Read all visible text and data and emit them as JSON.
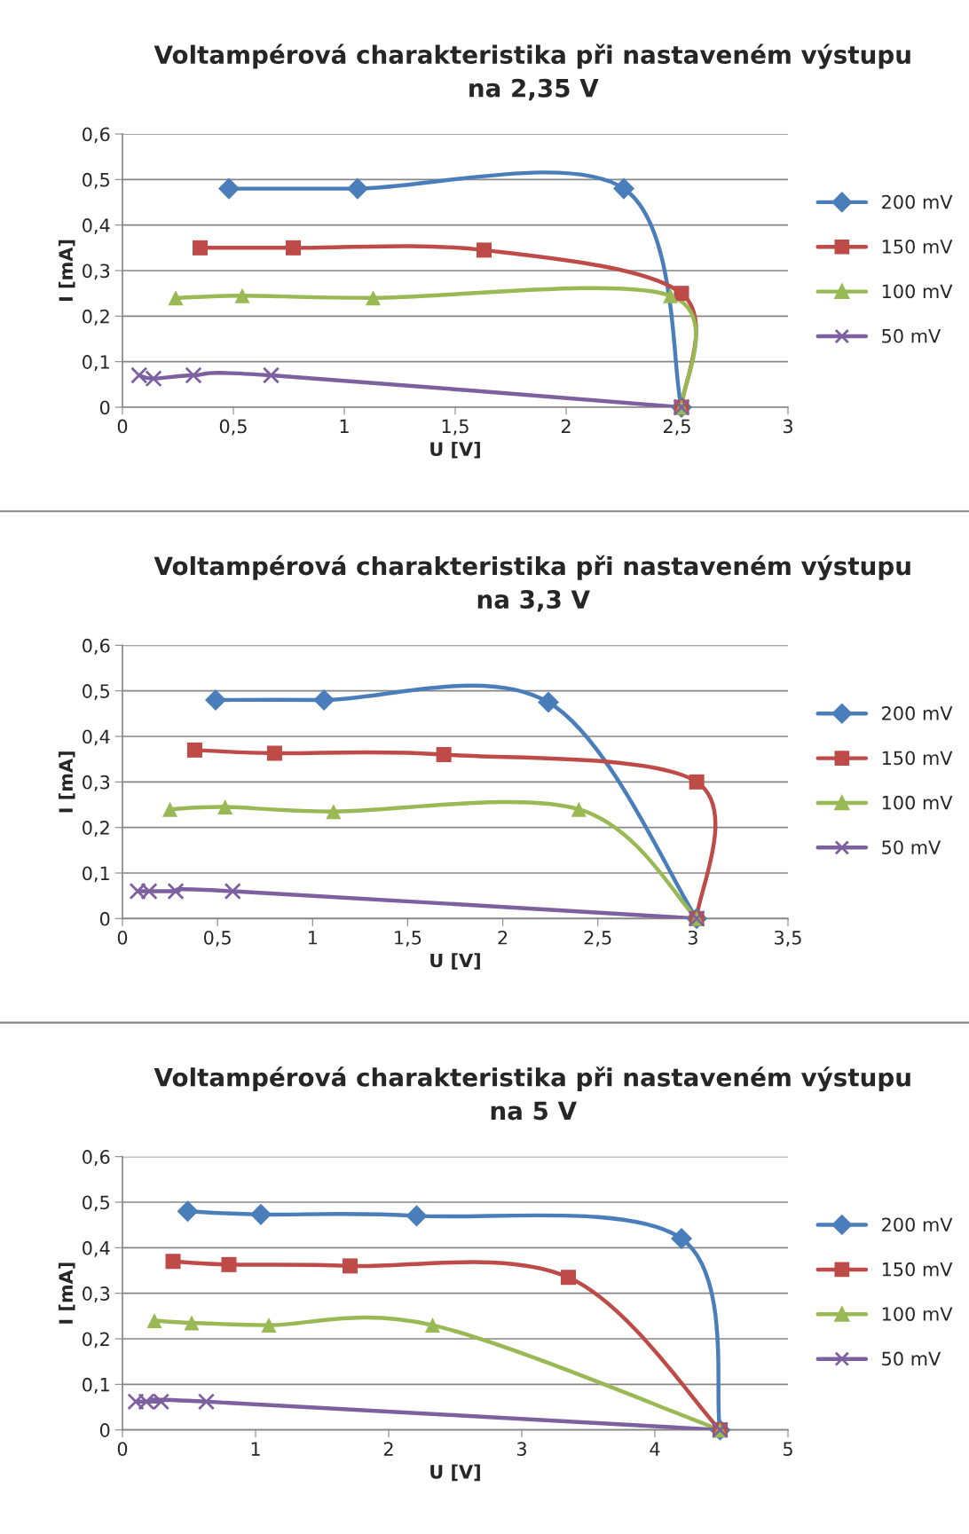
{
  "chart_data": [
    {
      "type": "line",
      "title": "Voltampérová charakteristika při nastaveném výstupu\nna 2,35 V",
      "xlabel": "U [V]",
      "ylabel": "I [mA]",
      "xlim": [
        0,
        3
      ],
      "xticks": [
        0,
        {
          "value": 0.5,
          "label": "0,5"
        },
        1,
        {
          "value": 1.5,
          "label": "1,5"
        },
        2,
        {
          "value": 2.5,
          "label": "2,5"
        },
        3
      ],
      "ylim": [
        0,
        0.6
      ],
      "yticks": [
        0,
        {
          "value": 0.1,
          "label": "0,1"
        },
        {
          "value": 0.2,
          "label": "0,2"
        },
        {
          "value": 0.3,
          "label": "0,3"
        },
        {
          "value": 0.4,
          "label": "0,4"
        },
        {
          "value": 0.5,
          "label": "0,5"
        },
        {
          "value": 0.6,
          "label": "0,6"
        }
      ],
      "grid": "y",
      "legend": "right",
      "line_style": "solid",
      "series": [
        {
          "name": "200 mV",
          "color": "#4a7ebb",
          "marker": "diamond",
          "x": [
            0.48,
            1.06,
            2.26,
            2.52
          ],
          "values": [
            0.48,
            0.48,
            0.48,
            0
          ]
        },
        {
          "name": "150 mV",
          "color": "#be4b48",
          "marker": "square",
          "x": [
            0.35,
            0.77,
            1.63,
            2.52,
            2.52
          ],
          "values": [
            0.35,
            0.35,
            0.345,
            0.25,
            0
          ]
        },
        {
          "name": "100 mV",
          "color": "#98b954",
          "marker": "triangle",
          "x": [
            0.24,
            0.54,
            1.13,
            2.47,
            2.52
          ],
          "values": [
            0.24,
            0.245,
            0.24,
            0.245,
            0
          ]
        },
        {
          "name": "50 mV",
          "color": "#7d60a0",
          "marker": "cross",
          "x": [
            0.075,
            0.14,
            0.32,
            0.67,
            2.52
          ],
          "values": [
            0.07,
            0.063,
            0.07,
            0.07,
            0
          ]
        }
      ]
    },
    {
      "type": "line",
      "title": "Voltampérová charakteristika při nastaveném výstupu\nna 3,3 V",
      "xlabel": "U [V]",
      "ylabel": "I [mA]",
      "xlim": [
        0,
        3.5
      ],
      "xticks": [
        0,
        {
          "value": 0.5,
          "label": "0,5"
        },
        1,
        {
          "value": 1.5,
          "label": "1,5"
        },
        2,
        {
          "value": 2.5,
          "label": "2,5"
        },
        3,
        {
          "value": 3.5,
          "label": "3,5"
        }
      ],
      "ylim": [
        0,
        0.6
      ],
      "yticks": [
        0,
        {
          "value": 0.1,
          "label": "0,1"
        },
        {
          "value": 0.2,
          "label": "0,2"
        },
        {
          "value": 0.3,
          "label": "0,3"
        },
        {
          "value": 0.4,
          "label": "0,4"
        },
        {
          "value": 0.5,
          "label": "0,5"
        },
        {
          "value": 0.6,
          "label": "0,6"
        }
      ],
      "grid": "y",
      "legend": "right",
      "line_style": "solid",
      "series": [
        {
          "name": "200 mV",
          "color": "#4a7ebb",
          "marker": "diamond",
          "x": [
            0.49,
            1.06,
            2.24,
            3.02
          ],
          "values": [
            0.48,
            0.48,
            0.475,
            0
          ]
        },
        {
          "name": "150 mV",
          "color": "#be4b48",
          "marker": "square",
          "x": [
            0.38,
            0.8,
            1.69,
            3.02,
            3.02
          ],
          "values": [
            0.37,
            0.363,
            0.36,
            0.3,
            0
          ]
        },
        {
          "name": "100 mV",
          "color": "#98b954",
          "marker": "triangle",
          "x": [
            0.25,
            0.54,
            1.11,
            2.4,
            3.02
          ],
          "values": [
            0.24,
            0.245,
            0.235,
            0.24,
            0
          ]
        },
        {
          "name": "50 mV",
          "color": "#7d60a0",
          "marker": "cross",
          "x": [
            0.08,
            0.14,
            0.28,
            0.58,
            3.02
          ],
          "values": [
            0.06,
            0.06,
            0.06,
            0.06,
            0
          ]
        }
      ]
    },
    {
      "type": "line",
      "title": "Voltampérová charakteristika při nastaveném výstupu\nna 5 V",
      "xlabel": "U [V]",
      "ylabel": "I [mA]",
      "xlim": [
        0,
        5
      ],
      "xticks": [
        0,
        1,
        2,
        3,
        4,
        5
      ],
      "ylim": [
        0,
        0.6
      ],
      "yticks": [
        0,
        {
          "value": 0.1,
          "label": "0,1"
        },
        {
          "value": 0.2,
          "label": "0,2"
        },
        {
          "value": 0.3,
          "label": "0,3"
        },
        {
          "value": 0.4,
          "label": "0,4"
        },
        {
          "value": 0.5,
          "label": "0,5"
        },
        {
          "value": 0.6,
          "label": "0,6"
        }
      ],
      "grid": "y",
      "legend": "right",
      "line_style": "solid",
      "series": [
        {
          "name": "200 mV",
          "color": "#4a7ebb",
          "marker": "diamond",
          "x": [
            0.49,
            1.04,
            2.21,
            4.2,
            4.49
          ],
          "values": [
            0.48,
            0.473,
            0.47,
            0.42,
            0
          ]
        },
        {
          "name": "150 mV",
          "color": "#be4b48",
          "marker": "square",
          "x": [
            0.38,
            0.8,
            1.71,
            3.35,
            4.49
          ],
          "values": [
            0.37,
            0.363,
            0.36,
            0.335,
            0
          ]
        },
        {
          "name": "100 mV",
          "color": "#98b954",
          "marker": "triangle",
          "x": [
            0.24,
            0.52,
            1.1,
            2.33,
            4.49
          ],
          "values": [
            0.24,
            0.235,
            0.23,
            0.23,
            0
          ]
        },
        {
          "name": "50 mV",
          "color": "#7d60a0",
          "marker": "cross",
          "x": [
            0.1,
            0.18,
            0.29,
            0.63,
            4.49
          ],
          "values": [
            0.062,
            0.062,
            0.062,
            0.062,
            0
          ]
        }
      ]
    }
  ]
}
